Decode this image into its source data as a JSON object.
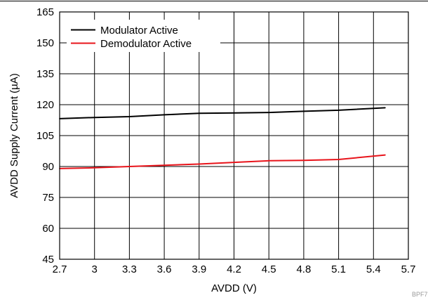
{
  "chart_data": {
    "type": "line",
    "xlabel": "AVDD (V)",
    "ylabel": "AVDD Supply Current (µA)",
    "xlim": [
      2.7,
      5.7
    ],
    "ylim": [
      45,
      165
    ],
    "x_ticks": [
      "2.7",
      "3",
      "3.3",
      "3.6",
      "3.9",
      "4.2",
      "4.5",
      "4.8",
      "5.1",
      "5.4",
      "5.7"
    ],
    "y_ticks": [
      "45",
      "60",
      "75",
      "90",
      "105",
      "120",
      "135",
      "150",
      "165"
    ],
    "grid": true,
    "legend_position": "top-left",
    "series": [
      {
        "name": "Modulator Active",
        "color": "#000000",
        "x": [
          2.7,
          3.0,
          3.3,
          3.6,
          3.9,
          4.2,
          4.5,
          4.8,
          5.1,
          5.5
        ],
        "y": [
          113.2,
          113.8,
          114.2,
          115.1,
          115.8,
          116.0,
          116.2,
          116.8,
          117.3,
          118.5
        ]
      },
      {
        "name": "Demodulator Active",
        "color": "#e8141b",
        "x": [
          2.7,
          3.0,
          3.3,
          3.6,
          3.9,
          4.2,
          4.5,
          4.8,
          5.1,
          5.5
        ],
        "y": [
          89.0,
          89.4,
          90.0,
          90.6,
          91.2,
          92.0,
          92.8,
          93.0,
          93.4,
          95.6
        ]
      }
    ]
  },
  "watermark": "BPF7"
}
